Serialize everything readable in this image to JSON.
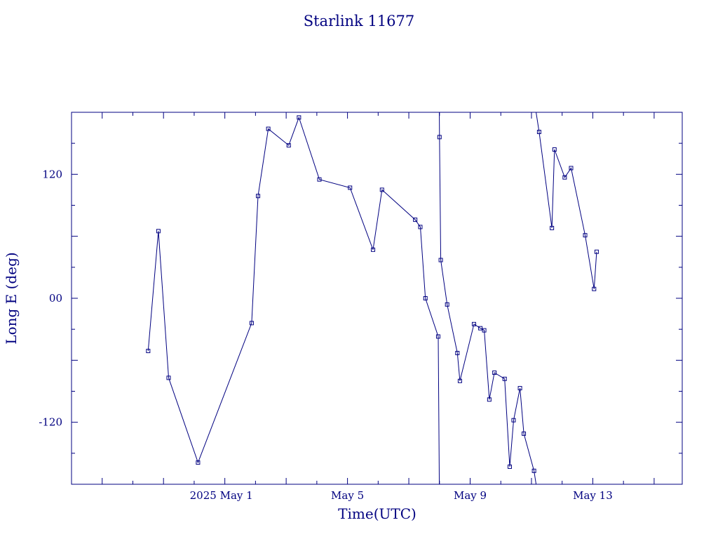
{
  "chart_data": {
    "type": "line",
    "title": "Starlink 11677",
    "xlabel": "Time(UTC)",
    "ylabel": "Long E (deg)",
    "x_range": [
      "2025-04-26 00:00",
      "2025-05-15 22:00"
    ],
    "ylim": [
      -180,
      180
    ],
    "x_tick_labels": [
      {
        "label": "2025 May  1",
        "date": "2025-05-01"
      },
      {
        "label": "May  5",
        "date": "2025-05-05"
      },
      {
        "label": "May  9",
        "date": "2025-05-09"
      },
      {
        "label": "May 13",
        "date": "2025-05-13"
      }
    ],
    "y_tick_labels": [
      {
        "label": "120",
        "value": 120
      },
      {
        "label": "00",
        "value": 0
      },
      {
        "label": "-120",
        "value": -120
      }
    ],
    "grid": false,
    "line_color": "#000080",
    "marker": "square",
    "series": [
      {
        "points": [
          [
            "2025-04-28 12:00",
            -51
          ],
          [
            "2025-04-28 20:00",
            65
          ],
          [
            "2025-04-29 04:00",
            -77
          ],
          [
            "2025-04-30 03:00",
            -159
          ],
          [
            "2025-05-01 21:00",
            -24
          ],
          [
            "2025-05-02 02:00",
            99
          ],
          [
            "2025-05-02 10:00",
            164
          ],
          [
            "2025-05-03 02:00",
            148
          ],
          [
            "2025-05-03 10:00",
            175
          ],
          [
            "2025-05-04 02:00",
            115
          ],
          [
            "2025-05-05 02:00",
            107
          ],
          [
            "2025-05-05 20:00",
            47
          ],
          [
            "2025-05-06 03:00",
            105
          ],
          [
            "2025-05-07 05:00",
            76
          ],
          [
            "2025-05-07 09:00",
            69
          ],
          [
            "2025-05-07 13:00",
            0
          ],
          [
            "2025-05-07 23:00",
            -37
          ],
          [
            "2025-05-08 00:00",
            156
          ],
          [
            "2025-05-08 01:00",
            37
          ],
          [
            "2025-05-08 06:00",
            -6
          ],
          [
            "2025-05-08 14:00",
            -53
          ],
          [
            "2025-05-08 16:00",
            -80
          ],
          [
            "2025-05-09 03:00",
            -25
          ],
          [
            "2025-05-09 08:00",
            -29
          ],
          [
            "2025-05-09 11:00",
            -31
          ],
          [
            "2025-05-09 15:00",
            -98
          ],
          [
            "2025-05-09 19:00",
            -72
          ],
          [
            "2025-05-10 03:00",
            -78
          ],
          [
            "2025-05-10 07:00",
            -163
          ],
          [
            "2025-05-10 10:00",
            -118
          ],
          [
            "2025-05-10 15:00",
            -87
          ],
          [
            "2025-05-10 18:00",
            -131
          ],
          [
            "2025-05-11 02:00",
            -167
          ],
          [
            "2025-05-11 06:00",
            161
          ],
          [
            "2025-05-11 16:00",
            68
          ],
          [
            "2025-05-11 18:00",
            144
          ],
          [
            "2025-05-12 02:00",
            117
          ],
          [
            "2025-05-12 07:00",
            126
          ],
          [
            "2025-05-12 18:00",
            61
          ],
          [
            "2025-05-13 01:00",
            9
          ],
          [
            "2025-05-13 03:00",
            45
          ]
        ]
      }
    ]
  }
}
